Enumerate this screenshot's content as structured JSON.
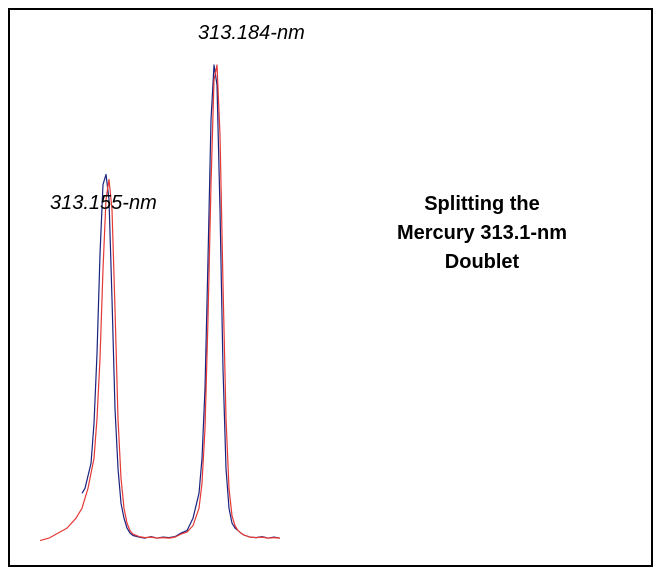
{
  "chart_data": {
    "type": "line",
    "title_lines": [
      "Splitting the",
      "Mercury 313.1-nm",
      "Doublet"
    ],
    "annotations": [
      "313.155-nm",
      "313.184-nm"
    ],
    "xlabel": "",
    "ylabel": "",
    "xlim": [
      0,
      100
    ],
    "ylim": [
      0,
      100
    ],
    "grid": false,
    "legend": "none",
    "series": [
      {
        "color": "#1a237e",
        "x": [
          14,
          15,
          17,
          18,
          19,
          20,
          21,
          22,
          23,
          24,
          25,
          26,
          27,
          28,
          29,
          30,
          31,
          33,
          35,
          37,
          39,
          41,
          43,
          45,
          47,
          49,
          51,
          53,
          54,
          55,
          56,
          57,
          58,
          59,
          60,
          61,
          62,
          63,
          64,
          65,
          66,
          67,
          68,
          69,
          70,
          72,
          74,
          76,
          78,
          80
        ],
        "values": [
          13,
          14,
          19,
          27,
          41,
          61,
          75,
          77,
          72,
          52,
          30,
          18,
          11,
          8,
          6,
          5,
          4.5,
          4.2,
          4,
          4.3,
          4,
          4.2,
          4.1,
          4.3,
          5,
          5.5,
          8,
          13,
          20,
          34,
          60,
          88,
          99,
          95,
          70,
          38,
          18,
          10,
          7,
          6,
          5.5,
          5,
          4.6,
          4.4,
          4.2,
          4.1,
          4.3,
          4,
          4.2,
          4
        ]
      },
      {
        "color": "#e53935",
        "x": [
          0,
          3,
          6,
          9,
          12,
          14,
          16,
          18,
          19,
          20,
          21,
          22,
          23,
          24,
          25,
          26,
          27,
          28,
          29,
          30,
          31,
          33,
          35,
          37,
          39,
          41,
          43,
          45,
          47,
          49,
          51,
          53,
          54,
          55,
          56,
          57,
          58,
          59,
          60,
          61,
          62,
          63,
          64,
          65,
          66,
          67,
          68,
          69,
          70,
          72,
          74,
          76,
          78,
          80
        ],
        "values": [
          3.5,
          4,
          5,
          6,
          8,
          10,
          14,
          20,
          28,
          40,
          58,
          72,
          76,
          70,
          50,
          28,
          16,
          10,
          7,
          5.5,
          4.8,
          4.3,
          4.1,
          4.2,
          4,
          4.1,
          4,
          4.2,
          4.8,
          5.2,
          6.5,
          10,
          15,
          26,
          48,
          75,
          96,
          99,
          85,
          55,
          28,
          14,
          8.5,
          6.5,
          5.5,
          5,
          4.6,
          4.4,
          4.2,
          4.1,
          4.2,
          4,
          4.1,
          4
        ]
      }
    ]
  }
}
